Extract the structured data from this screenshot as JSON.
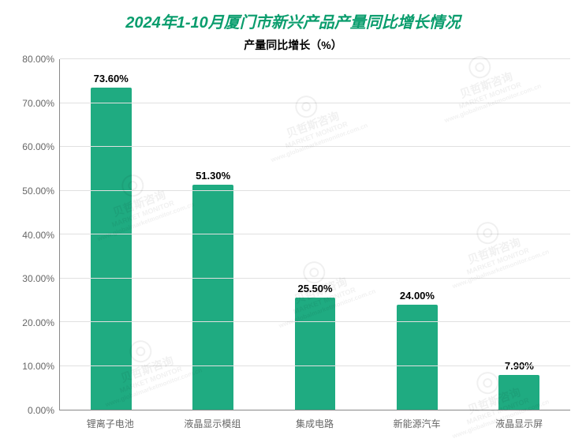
{
  "title": {
    "text": "2024年1-10月厦门市新兴产品产量同比增长情况",
    "color": "#0a9d6d",
    "fontsize": 20
  },
  "subtitle": {
    "text": "产量同比增长（%）",
    "fontsize": 14,
    "color": "#000000"
  },
  "chart": {
    "type": "bar",
    "categories": [
      "锂离子电池",
      "液晶显示模组",
      "集成电路",
      "新能源汽车",
      "液晶显示屏"
    ],
    "values": [
      73.6,
      51.3,
      25.5,
      24.0,
      7.9
    ],
    "value_labels": [
      "73.60%",
      "51.30%",
      "25.50%",
      "24.00%",
      "7.90%"
    ],
    "bar_color": "#1fab81",
    "bar_width_pct": 40,
    "ylim": [
      0,
      80
    ],
    "ytick_step": 10,
    "ytick_labels": [
      "0.00%",
      "10.00%",
      "20.00%",
      "30.00%",
      "40.00%",
      "50.00%",
      "60.00%",
      "70.00%",
      "80.00%"
    ],
    "background_color": "#ffffff",
    "grid_color": "#e0e0e0",
    "axis_color": "#888888",
    "tick_font_color": "#666666",
    "tick_fontsize": 12,
    "xlabel_fontsize": 12,
    "value_label_fontsize": 13,
    "value_label_color": "#000000"
  },
  "watermark": {
    "text_cn": "贝哲斯咨询",
    "text_en": "MARKET MONITOR",
    "url": "www.globalmarketmonitor.com.cn",
    "rotation_deg": -20
  }
}
